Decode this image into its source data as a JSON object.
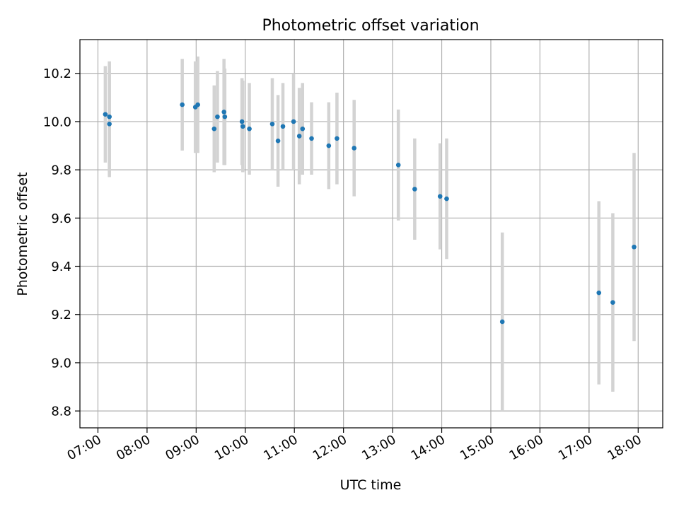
{
  "chart_data": {
    "type": "scatter",
    "title": "Photometric offset variation",
    "xlabel": "UTC time",
    "ylabel": "Photometric offset",
    "xlim": [
      "06:38",
      "18:30"
    ],
    "ylim": [
      8.73,
      10.34
    ],
    "x_ticks": [
      "07:00",
      "08:00",
      "09:00",
      "10:00",
      "11:00",
      "12:00",
      "13:00",
      "14:00",
      "15:00",
      "16:00",
      "17:00",
      "18:00"
    ],
    "y_ticks": [
      8.8,
      9.0,
      9.2,
      9.4,
      9.6,
      9.8,
      10.0,
      10.2
    ],
    "y_tick_labels": [
      "8.8",
      "9.0",
      "9.2",
      "9.4",
      "9.6",
      "9.8",
      "10.0",
      "10.2"
    ],
    "grid": true,
    "colors": {
      "points": "#1f77b4",
      "errorbars": "#d3d3d3",
      "grid": "#b0b0b0"
    },
    "series": [
      {
        "points": [
          {
            "x": "07:09",
            "y": 10.03,
            "err": 0.2
          },
          {
            "x": "07:14",
            "y": 9.99,
            "err": 0.22
          },
          {
            "x": "07:14",
            "y": 10.02,
            "err": 0.23
          },
          {
            "x": "08:43",
            "y": 10.07,
            "err": 0.19
          },
          {
            "x": "08:59",
            "y": 10.06,
            "err": 0.19
          },
          {
            "x": "09:02",
            "y": 10.07,
            "err": 0.2
          },
          {
            "x": "09:22",
            "y": 9.97,
            "err": 0.18
          },
          {
            "x": "09:26",
            "y": 10.02,
            "err": 0.19
          },
          {
            "x": "09:34",
            "y": 10.04,
            "err": 0.22
          },
          {
            "x": "09:35",
            "y": 10.02,
            "err": 0.2
          },
          {
            "x": "09:56",
            "y": 10.0,
            "err": 0.18
          },
          {
            "x": "09:57",
            "y": 9.98,
            "err": 0.19
          },
          {
            "x": "10:05",
            "y": 9.97,
            "err": 0.19
          },
          {
            "x": "10:33",
            "y": 9.99,
            "err": 0.19
          },
          {
            "x": "10:40",
            "y": 9.92,
            "err": 0.19
          },
          {
            "x": "10:46",
            "y": 9.98,
            "err": 0.18
          },
          {
            "x": "10:59",
            "y": 10.0,
            "err": 0.2
          },
          {
            "x": "11:06",
            "y": 9.94,
            "err": 0.2
          },
          {
            "x": "11:10",
            "y": 9.97,
            "err": 0.19
          },
          {
            "x": "11:21",
            "y": 9.93,
            "err": 0.15
          },
          {
            "x": "11:42",
            "y": 9.9,
            "err": 0.18
          },
          {
            "x": "11:52",
            "y": 9.93,
            "err": 0.19
          },
          {
            "x": "12:13",
            "y": 9.89,
            "err": 0.2
          },
          {
            "x": "13:07",
            "y": 9.82,
            "err": 0.23
          },
          {
            "x": "13:27",
            "y": 9.72,
            "err": 0.21
          },
          {
            "x": "13:58",
            "y": 9.69,
            "err": 0.22
          },
          {
            "x": "14:06",
            "y": 9.68,
            "err": 0.25
          },
          {
            "x": "15:14",
            "y": 9.17,
            "err": 0.37
          },
          {
            "x": "17:12",
            "y": 9.29,
            "err": 0.38
          },
          {
            "x": "17:29",
            "y": 9.25,
            "err": 0.37
          },
          {
            "x": "17:55",
            "y": 9.48,
            "err": 0.39
          }
        ]
      }
    ]
  }
}
